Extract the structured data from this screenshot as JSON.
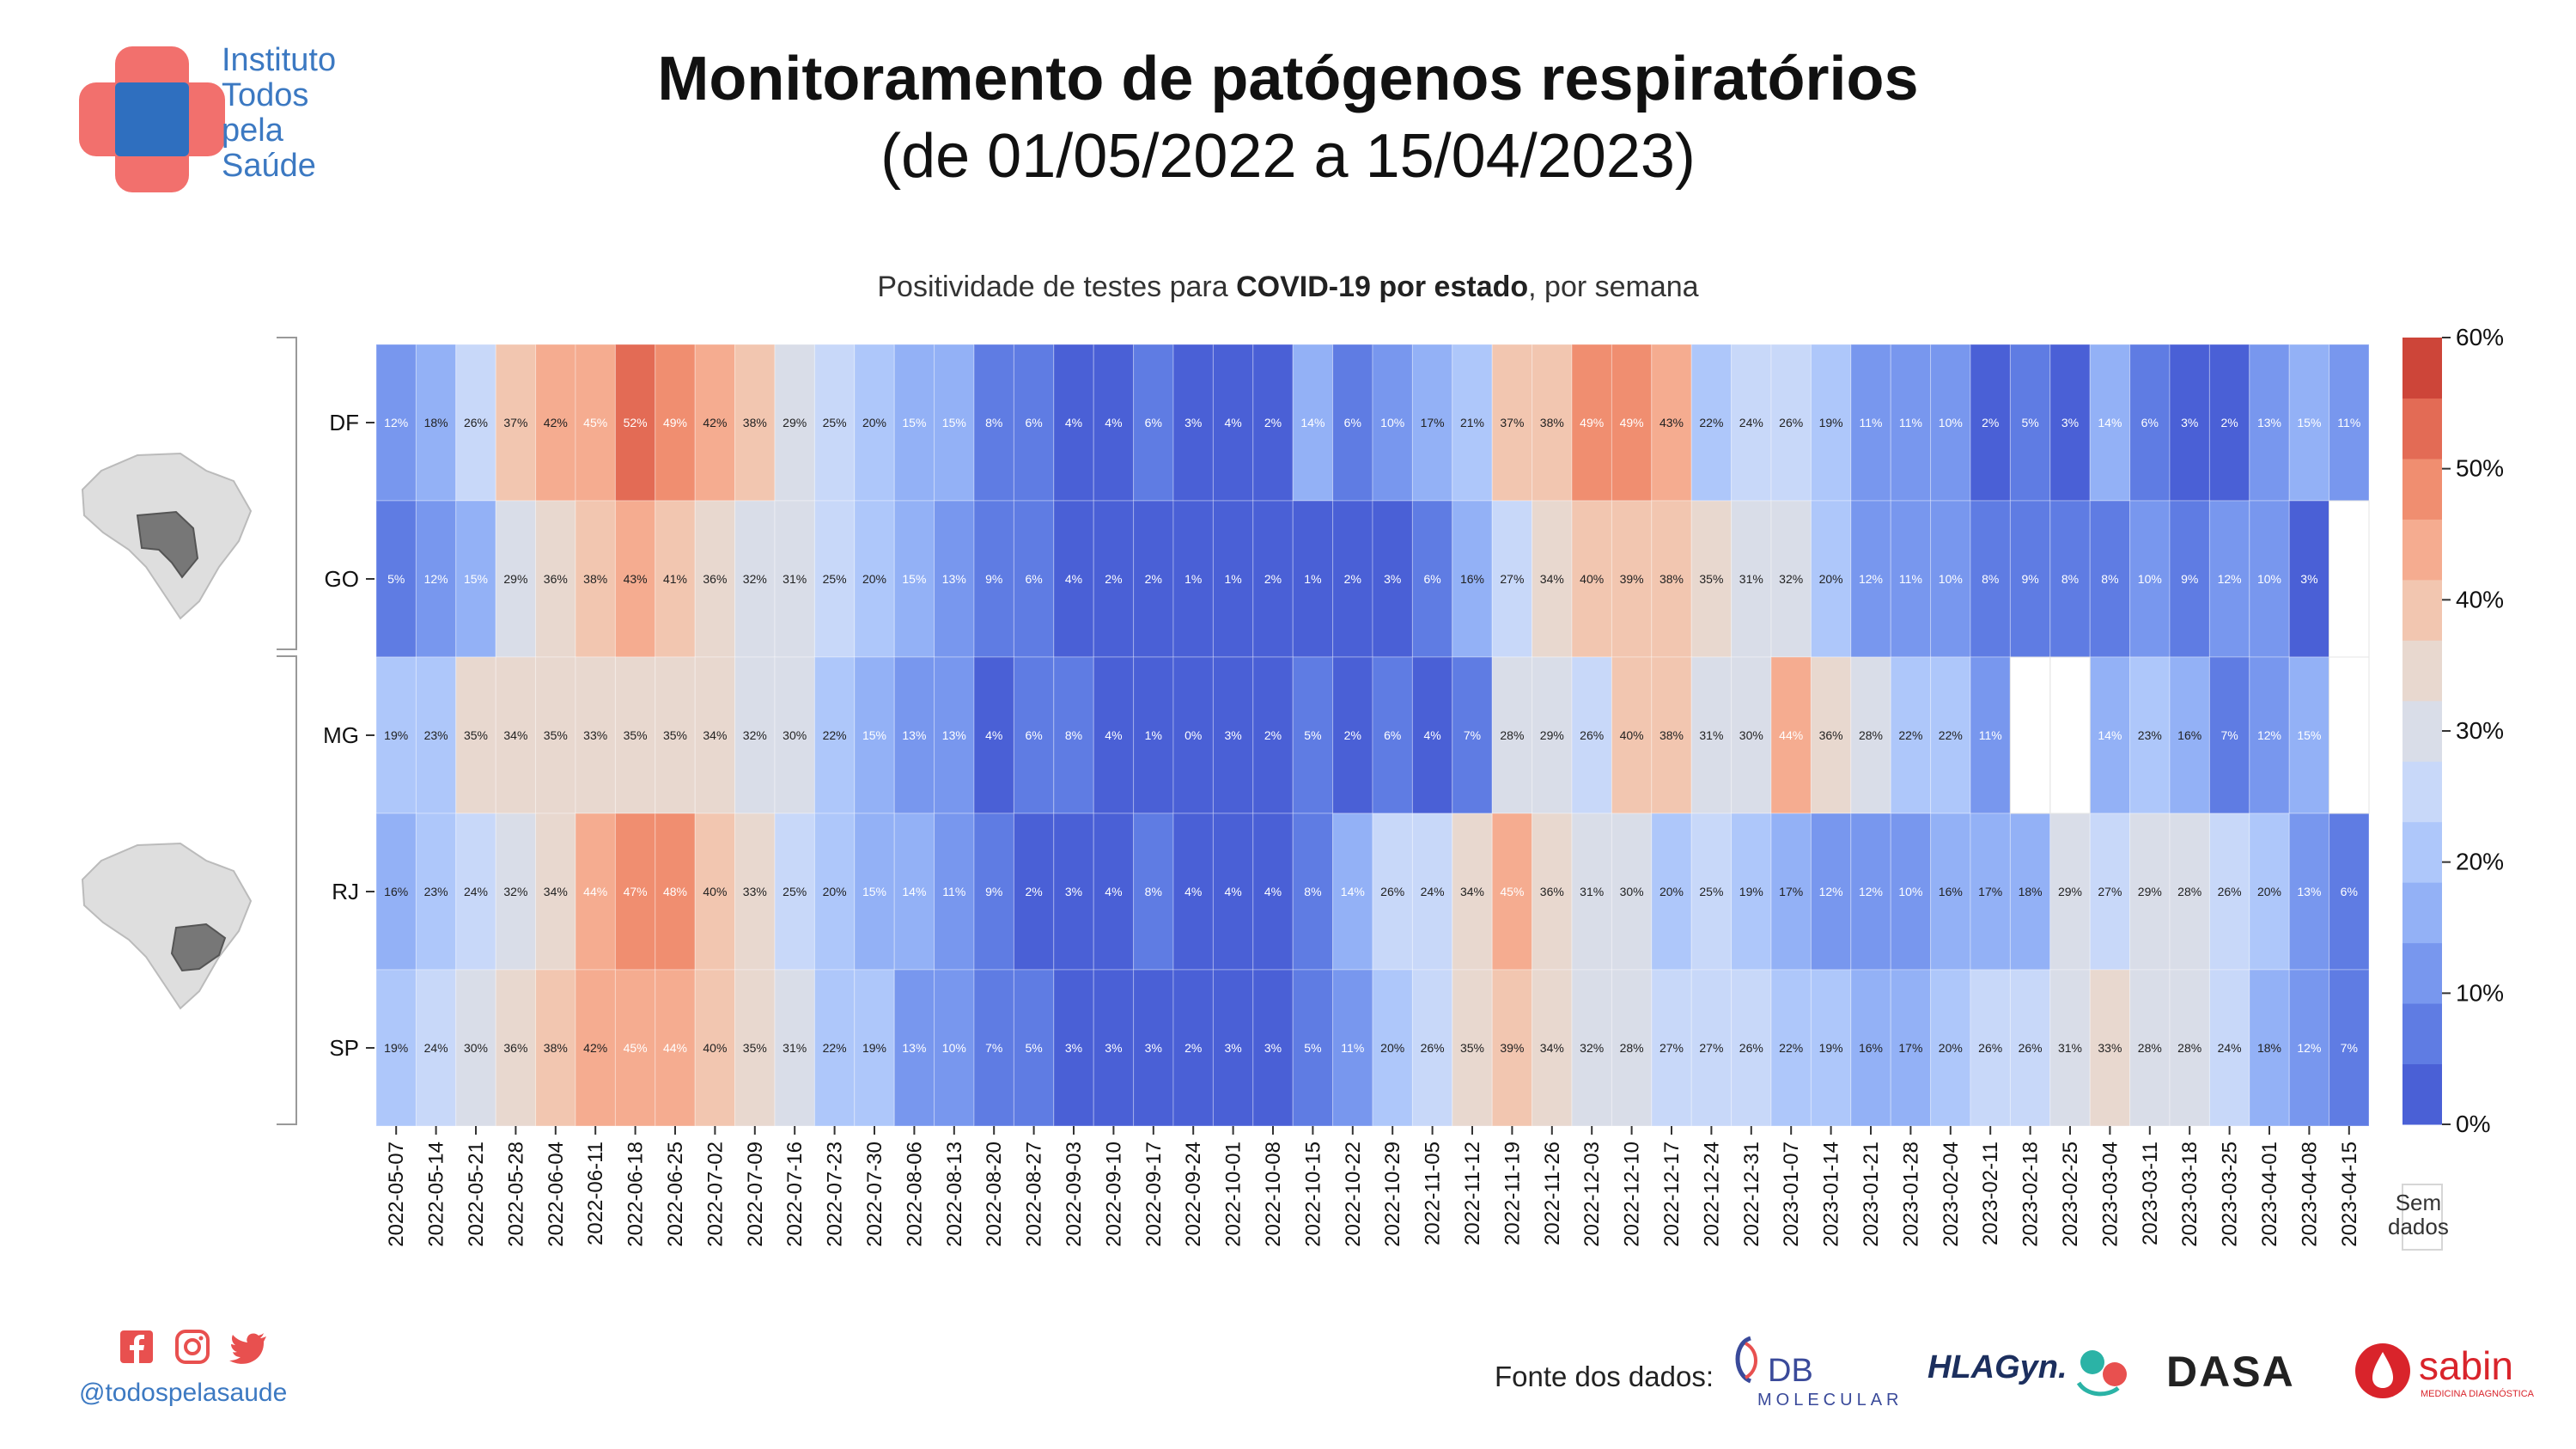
{
  "header": {
    "logo_lines": [
      "Instituto",
      "Todos",
      "pela",
      "Saúde"
    ],
    "title": "Monitoramento de patógenos respiratórios",
    "subtitle": "(de 01/05/2022 a 15/04/2023)"
  },
  "chart_title": {
    "prefix": "Positividade de testes para ",
    "bold": "COVID-19 por estado",
    "suffix": ", por semana"
  },
  "chart_data": {
    "type": "heatmap",
    "title": "Positividade de testes para COVID-19 por estado, por semana",
    "rows": [
      "DF",
      "GO",
      "MG",
      "RJ",
      "SP"
    ],
    "columns": [
      "2022-05-07",
      "2022-05-14",
      "2022-05-21",
      "2022-05-28",
      "2022-06-04",
      "2022-06-11",
      "2022-06-18",
      "2022-06-25",
      "2022-07-02",
      "2022-07-09",
      "2022-07-16",
      "2022-07-23",
      "2022-07-30",
      "2022-08-06",
      "2022-08-13",
      "2022-08-20",
      "2022-08-27",
      "2022-09-03",
      "2022-09-10",
      "2022-09-17",
      "2022-09-24",
      "2022-10-01",
      "2022-10-08",
      "2022-10-15",
      "2022-10-22",
      "2022-10-29",
      "2022-11-05",
      "2022-11-12",
      "2022-11-19",
      "2022-11-26",
      "2022-12-03",
      "2022-12-10",
      "2022-12-17",
      "2022-12-24",
      "2022-12-31",
      "2023-01-07",
      "2023-01-14",
      "2023-01-21",
      "2023-01-28",
      "2023-02-04",
      "2023-02-11",
      "2023-02-18",
      "2023-02-25",
      "2023-03-04",
      "2023-03-11",
      "2023-03-18",
      "2023-03-25",
      "2023-04-01",
      "2023-04-08",
      "2023-04-15"
    ],
    "values": [
      [
        12,
        18,
        26,
        37,
        42,
        45,
        52,
        49,
        42,
        38,
        29,
        25,
        20,
        15,
        15,
        8,
        6,
        4,
        4,
        6,
        3,
        4,
        2,
        14,
        6,
        10,
        17,
        21,
        37,
        38,
        49,
        49,
        43,
        22,
        24,
        26,
        19,
        11,
        11,
        10,
        2,
        5,
        3,
        14,
        6,
        3,
        2,
        13,
        15,
        11
      ],
      [
        5,
        12,
        15,
        29,
        36,
        38,
        43,
        41,
        36,
        32,
        31,
        25,
        20,
        15,
        13,
        9,
        6,
        4,
        2,
        2,
        1,
        1,
        2,
        1,
        2,
        3,
        6,
        16,
        27,
        34,
        40,
        39,
        38,
        35,
        31,
        32,
        20,
        12,
        11,
        10,
        8,
        9,
        8,
        8,
        10,
        9,
        12,
        10,
        3,
        null
      ],
      [
        19,
        23,
        35,
        34,
        35,
        33,
        35,
        35,
        34,
        32,
        30,
        22,
        15,
        13,
        13,
        4,
        6,
        8,
        4,
        1,
        0,
        3,
        2,
        5,
        2,
        6,
        4,
        7,
        28,
        29,
        26,
        40,
        38,
        31,
        30,
        44,
        36,
        28,
        22,
        22,
        11,
        null,
        null,
        14,
        23,
        16,
        7,
        12,
        15,
        null
      ],
      [
        16,
        23,
        24,
        32,
        34,
        44,
        47,
        48,
        40,
        33,
        25,
        20,
        15,
        14,
        11,
        9,
        2,
        3,
        4,
        8,
        4,
        4,
        4,
        8,
        14,
        26,
        24,
        34,
        45,
        36,
        31,
        30,
        20,
        25,
        19,
        17,
        12,
        12,
        10,
        16,
        17,
        18,
        29,
        27,
        29,
        28,
        26,
        20,
        13,
        6
      ],
      [
        19,
        24,
        30,
        36,
        38,
        42,
        45,
        44,
        40,
        35,
        31,
        22,
        19,
        13,
        10,
        7,
        5,
        3,
        3,
        3,
        2,
        3,
        3,
        5,
        11,
        20,
        26,
        35,
        39,
        34,
        32,
        28,
        27,
        27,
        26,
        22,
        19,
        16,
        17,
        20,
        26,
        26,
        31,
        33,
        28,
        28,
        24,
        18,
        12,
        7
      ]
    ],
    "unit": "%",
    "color_scale": {
      "min": 0,
      "max": 60,
      "ticks": [
        "0%",
        "10%",
        "20%",
        "30%",
        "40%",
        "50%",
        "60%"
      ],
      "colors": [
        "#4a60d6",
        "#5f7ce3",
        "#7897ee",
        "#93b1f6",
        "#aec7fa",
        "#c8d8f9",
        "#d9dde8",
        "#e8d8cf",
        "#f2c6b0",
        "#f5ac90",
        "#f08e70",
        "#e36b55",
        "#cd4539"
      ]
    },
    "no_data_label": [
      "Sem",
      "dados"
    ],
    "row_groups": [
      [
        "DF",
        "GO"
      ],
      [
        "MG",
        "RJ",
        "SP"
      ]
    ]
  },
  "footer": {
    "handle": "@todospelasaude",
    "source_label": "Fonte dos dados:",
    "partners": {
      "db": "DB",
      "db_sub": "MOLECULAR",
      "hlagyn": "HLAGyn.",
      "dasa": "DASA",
      "sabin": "sabin",
      "sabin_sub": "MEDICINA DIAGNÓSTICA"
    },
    "social_icons": [
      "facebook-icon",
      "instagram-icon",
      "twitter-icon"
    ]
  }
}
